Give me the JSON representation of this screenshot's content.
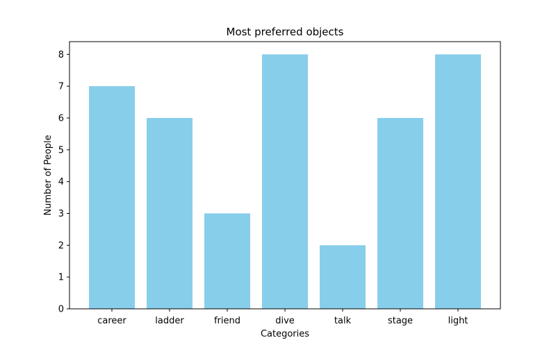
{
  "chart_data": {
    "type": "bar",
    "title": "Most preferred objects",
    "xlabel": "Categories",
    "ylabel": "Number of People",
    "categories": [
      "career",
      "ladder",
      "friend",
      "dive",
      "talk",
      "stage",
      "light"
    ],
    "values": [
      7,
      6,
      3,
      8,
      2,
      6,
      8
    ],
    "ylim": [
      0,
      8.4
    ],
    "yticks": [
      0,
      1,
      2,
      3,
      4,
      5,
      6,
      7,
      8
    ],
    "bar_color": "#87ceeb",
    "grid": false,
    "legend": "none"
  }
}
